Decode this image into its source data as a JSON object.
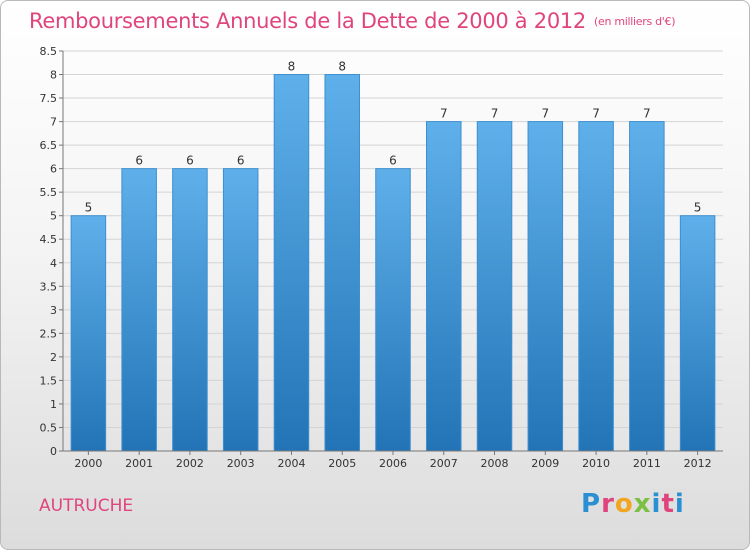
{
  "header": {
    "title": "Remboursements Annuels de la Dette de 2000 à 2012",
    "unit": "(en milliers d'€)"
  },
  "footer": {
    "commune": "AUTRUCHE",
    "logo_text": "Proxiti"
  },
  "colors": {
    "bar_top": "#5fb0ea",
    "bar_bottom": "#2274b6",
    "title": "#e0447c"
  },
  "chart_data": {
    "type": "bar",
    "title": "Remboursements Annuels de la Dette de 2000 à 2012",
    "xlabel": "",
    "ylabel": "",
    "categories": [
      "2000",
      "2001",
      "2002",
      "2003",
      "2004",
      "2005",
      "2006",
      "2007",
      "2008",
      "2009",
      "2010",
      "2011",
      "2012"
    ],
    "values": [
      5,
      6,
      6,
      6,
      8,
      8,
      6,
      7,
      7,
      7,
      7,
      7,
      5
    ],
    "data_labels": [
      "5",
      "6",
      "6",
      "6",
      "8",
      "8",
      "6",
      "7",
      "7",
      "7",
      "7",
      "7",
      "5"
    ],
    "ylim": [
      0,
      8.5
    ],
    "yticks": [
      "0",
      "0.5",
      "1",
      "1.5",
      "2",
      "2.5",
      "3",
      "3.5",
      "4",
      "4.5",
      "5",
      "5.5",
      "6",
      "6.5",
      "7",
      "7.5",
      "8",
      "8.5"
    ],
    "grid": true,
    "legend": "none"
  }
}
